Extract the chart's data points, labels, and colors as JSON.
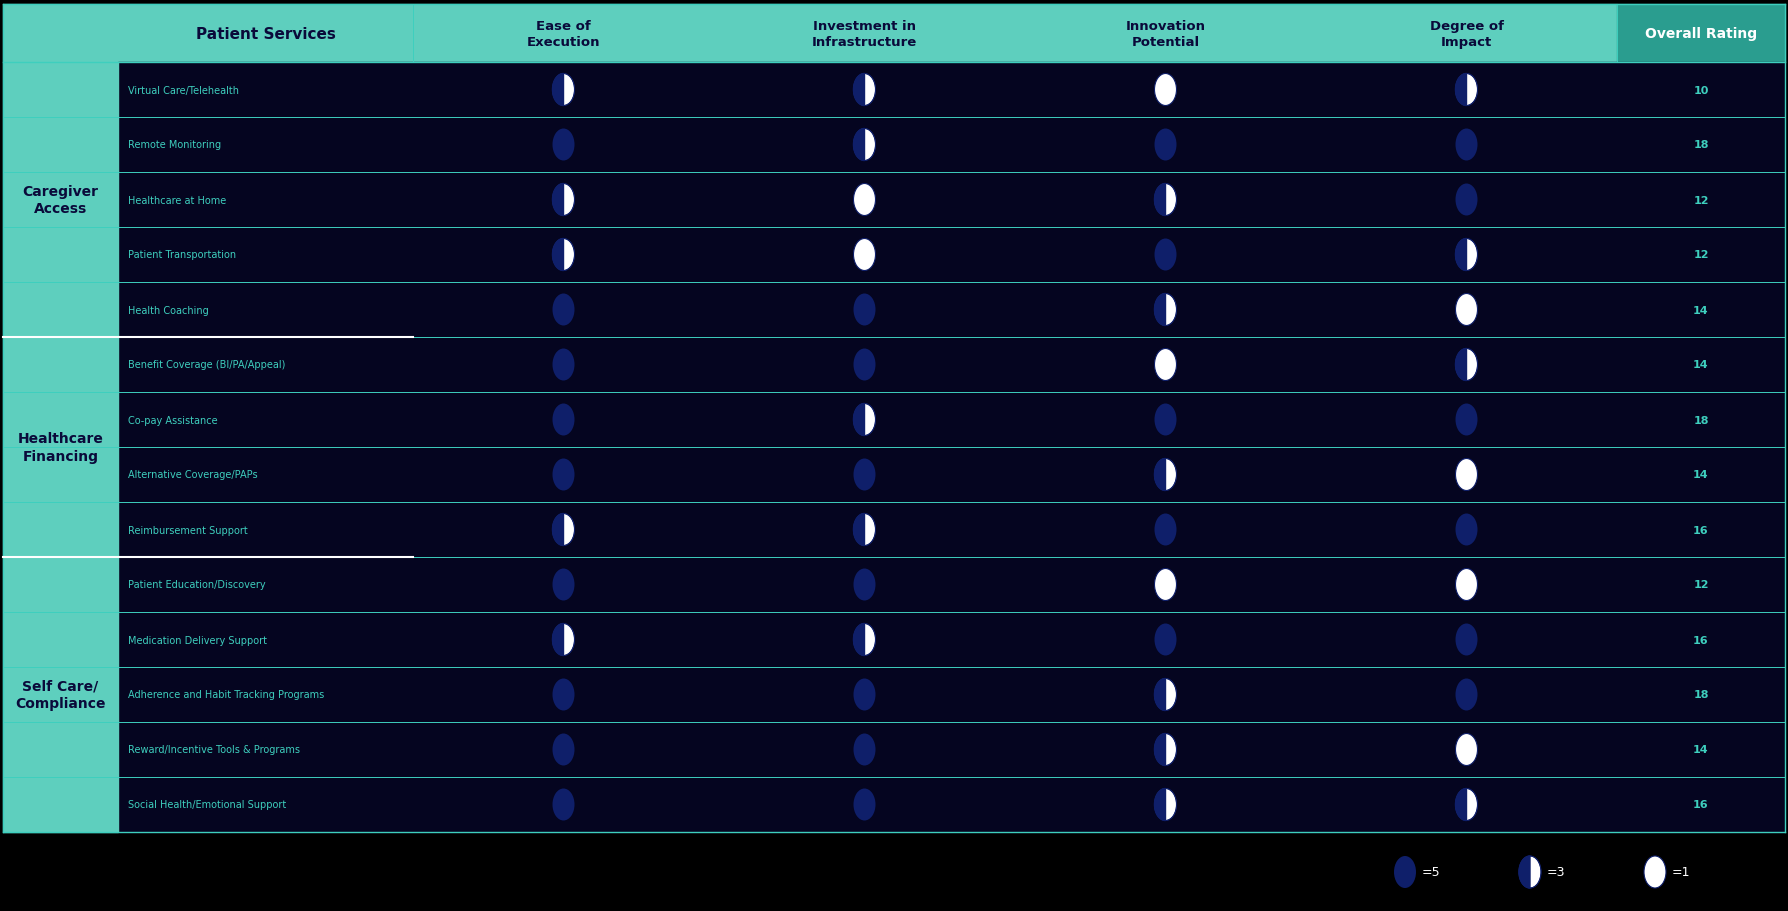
{
  "bg_color": "#000000",
  "teal_bg": "#5ECFBE",
  "teal_dark": "#2A9D8F",
  "row_bg_dark": "#050520",
  "row_line_color": "#3ECFBE",
  "header_text_color": "#0a0a3a",
  "cell_text_color": "#3ECFBE",
  "category_text_color": "#0a0a3a",
  "moon_full": "#0f1f6a",
  "moon_empty": "#ffffff",
  "categories": [
    {
      "name": "Caregiver\nAccess",
      "rows": 5
    },
    {
      "name": "Healthcare\nFinancing",
      "rows": 4
    },
    {
      "name": "Self Care/\nCompliance",
      "rows": 5
    }
  ],
  "services": [
    "Virtual Care/Telehealth",
    "Remote Monitoring",
    "Healthcare at Home",
    "Patient Transportation",
    "Health Coaching",
    "Benefit Coverage (BI/PA/Appeal)",
    "Co-pay Assistance",
    "Alternative Coverage/PAPs",
    "Reimbursement Support",
    "Patient Education/Discovery",
    "Medication Delivery Support",
    "Adherence and Habit Tracking Programs",
    "Reward/Incentive Tools & Programs",
    "Social Health/Emotional Support"
  ],
  "col_headers": [
    "Ease of\nExecution",
    "Investment in\nInfrastructure",
    "Innovation\nPotential",
    "Degree of\nImpact",
    "Overall Rating"
  ],
  "ratings": [
    [
      3,
      3,
      1,
      3,
      10
    ],
    [
      5,
      3,
      5,
      5,
      18
    ],
    [
      3,
      1,
      3,
      5,
      12
    ],
    [
      3,
      1,
      5,
      3,
      12
    ],
    [
      5,
      5,
      3,
      1,
      14
    ],
    [
      5,
      5,
      1,
      3,
      14
    ],
    [
      5,
      3,
      5,
      5,
      18
    ],
    [
      5,
      5,
      3,
      1,
      14
    ],
    [
      3,
      3,
      5,
      5,
      16
    ],
    [
      5,
      5,
      1,
      1,
      12
    ],
    [
      3,
      3,
      5,
      5,
      16
    ],
    [
      5,
      5,
      3,
      5,
      18
    ],
    [
      5,
      5,
      3,
      1,
      14
    ],
    [
      5,
      5,
      3,
      3,
      16
    ]
  ],
  "legend_items": [
    {
      "score": 5,
      "label": "=5"
    },
    {
      "score": 3,
      "label": "=3"
    },
    {
      "score": 1,
      "label": "=1"
    }
  ]
}
